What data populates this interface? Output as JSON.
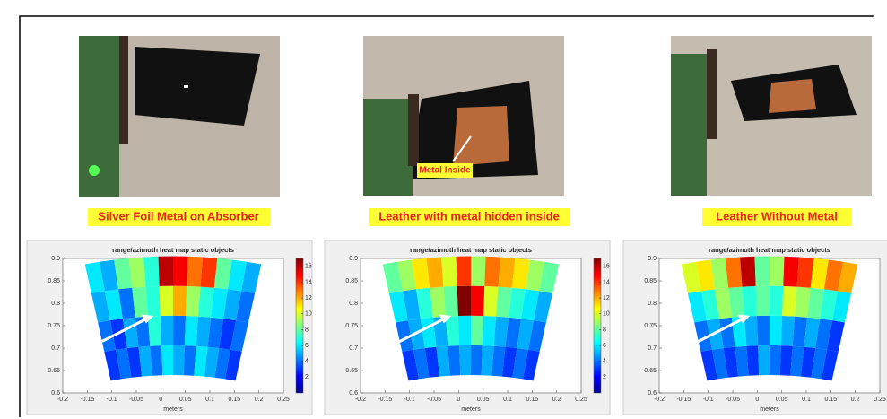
{
  "panels": [
    {
      "caption": "Silver Foil Metal on Absorber",
      "heatmap": {
        "title": "range/azimuth heat map static objects",
        "xlabel": "meters",
        "xlim": [
          -0.2,
          0.25
        ],
        "xticks": [
          -0.2,
          -0.15,
          -0.1,
          -0.05,
          0,
          0.05,
          0.1,
          0.15,
          0.2,
          0.25
        ],
        "ylim": [
          0.6,
          0.9
        ],
        "yticks": [
          0.6,
          0.65,
          0.7,
          0.75,
          0.8,
          0.85,
          0.9
        ],
        "clim": [
          0,
          17
        ],
        "cticks": [
          2,
          4,
          6,
          8,
          10,
          12,
          14,
          16
        ],
        "values": [
          [
            3,
            4,
            3,
            5,
            4,
            6,
            5,
            4,
            6,
            5,
            4,
            3
          ],
          [
            4,
            3,
            5,
            4,
            7,
            5,
            4,
            6,
            5,
            4,
            3,
            4
          ],
          [
            5,
            6,
            4,
            8,
            7,
            10,
            12,
            9,
            7,
            6,
            5,
            4
          ],
          [
            6,
            5,
            8,
            9,
            7,
            16,
            15,
            13,
            14,
            8,
            6,
            5
          ]
        ]
      }
    },
    {
      "caption": "Leather with metal hidden inside",
      "annotation": "Metal Inside",
      "heatmap": {
        "title": "range/azimuth heat map static objects",
        "xlabel": "meters",
        "xlim": [
          -0.2,
          0.25
        ],
        "xticks": [
          -0.2,
          -0.15,
          -0.1,
          -0.05,
          0,
          0.05,
          0.1,
          0.15,
          0.2,
          0.25
        ],
        "ylim": [
          0.6,
          0.9
        ],
        "yticks": [
          0.6,
          0.65,
          0.7,
          0.75,
          0.8,
          0.85,
          0.9
        ],
        "clim": [
          0,
          17
        ],
        "cticks": [
          2,
          4,
          6,
          8,
          10,
          12,
          14,
          16
        ],
        "values": [
          [
            3,
            4,
            3,
            5,
            4,
            5,
            4,
            5,
            4,
            3,
            4,
            3
          ],
          [
            4,
            5,
            6,
            5,
            7,
            6,
            8,
            6,
            5,
            4,
            5,
            4
          ],
          [
            6,
            5,
            7,
            9,
            8,
            17,
            15,
            10,
            8,
            7,
            6,
            5
          ],
          [
            8,
            9,
            11,
            12,
            10,
            14,
            9,
            13,
            12,
            11,
            9,
            8
          ]
        ]
      }
    },
    {
      "caption": "Leather Without Metal",
      "heatmap": {
        "title": "range/azimuth heat map static objects",
        "xlabel": "meters",
        "xlim": [
          -0.2,
          0.25
        ],
        "xticks": [
          -0.2,
          -0.15,
          -0.1,
          -0.05,
          0,
          0.05,
          0.1,
          0.15,
          0.2,
          0.25
        ],
        "ylim": [
          0.6,
          0.9
        ],
        "yticks": [
          0.6,
          0.65,
          0.7,
          0.75,
          0.8,
          0.85,
          0.9
        ],
        "clim": [
          0,
          17
        ],
        "values": [
          [
            3,
            4,
            3,
            4,
            3,
            5,
            4,
            3,
            4,
            3,
            4,
            3
          ],
          [
            4,
            5,
            4,
            6,
            5,
            4,
            6,
            5,
            4,
            5,
            4,
            3
          ],
          [
            6,
            7,
            9,
            8,
            7,
            8,
            7,
            10,
            9,
            8,
            7,
            6
          ],
          [
            10,
            11,
            9,
            13,
            16,
            8,
            9,
            15,
            14,
            11,
            13,
            12
          ]
        ]
      }
    }
  ]
}
